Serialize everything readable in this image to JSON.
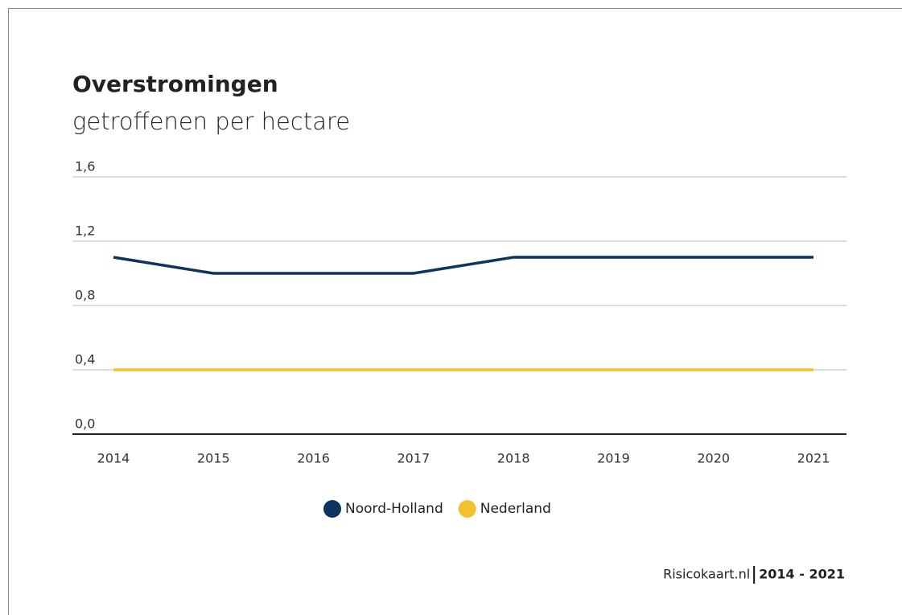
{
  "chart_data": {
    "type": "line",
    "title": "Overstromingen",
    "subtitle": "getroffenen per hectare",
    "categories": [
      "2014",
      "2015",
      "2016",
      "2017",
      "2018",
      "2019",
      "2020",
      "2021"
    ],
    "series": [
      {
        "name": "Noord-Holland",
        "color": "#0d3461",
        "values": [
          1.1,
          1.0,
          1.0,
          1.0,
          1.1,
          1.1,
          1.1,
          1.1
        ]
      },
      {
        "name": "Nederland",
        "color": "#f2c130",
        "values": [
          0.4,
          0.4,
          0.4,
          0.4,
          0.4,
          0.4,
          0.4,
          0.4
        ]
      }
    ],
    "ylim": [
      0,
      1.6
    ],
    "yticks": [
      {
        "value": 0,
        "label": "0,0"
      },
      {
        "value": 0.4,
        "label": "0,4"
      },
      {
        "value": 0.8,
        "label": "0,8"
      },
      {
        "value": 1.2,
        "label": "1,2"
      },
      {
        "value": 1.6,
        "label": "1,6"
      }
    ],
    "grid": true,
    "legend": "bottom",
    "source": "Risicokaart.nl",
    "period": "2014 - 2021"
  }
}
